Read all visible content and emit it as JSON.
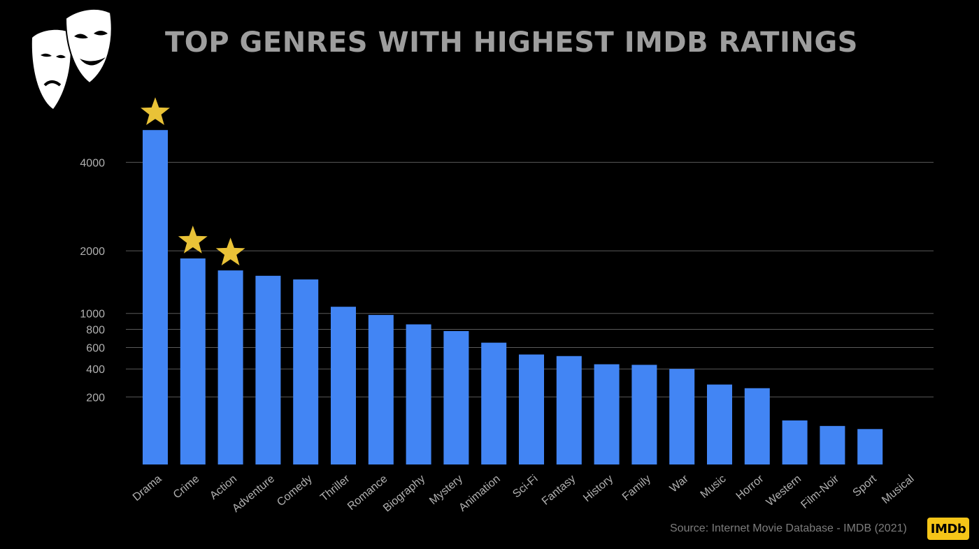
{
  "title": "TOP GENRES WITH HIGHEST IMDB RATINGS",
  "source": "Source: Internet Movie Database - IMDB (2021)",
  "logo_text": "IMDb",
  "icons": {
    "logo": "theatre-masks-icon",
    "highlight": "star-icon"
  },
  "colors": {
    "bar": "#4285f4",
    "star": "#e9c237",
    "title": "#9e9e9e",
    "grid": "#5a5a5a",
    "axis_text": "#b0b0b0",
    "logo_bg": "#f5c518"
  },
  "chart_data": {
    "type": "bar",
    "title": "TOP GENRES WITH HIGHEST IMDB RATINGS",
    "xlabel": "",
    "ylabel": "",
    "yscale": "sqrt",
    "ylim": [
      0,
      5000
    ],
    "yticks": [
      200,
      400,
      600,
      800,
      1000,
      2000,
      4000
    ],
    "grid": true,
    "categories": [
      "Drama",
      "Crime",
      "Action",
      "Adventure",
      "Comedy",
      "Thriller",
      "Romance",
      "Biography",
      "Mystery",
      "Animation",
      "Sci-Fi",
      "Fantasy",
      "History",
      "Family",
      "War",
      "Music",
      "Horror",
      "Western",
      "Film-Noir",
      "Sport",
      "Musical"
    ],
    "values": [
      4900,
      1860,
      1650,
      1560,
      1500,
      1090,
      980,
      860,
      780,
      650,
      530,
      515,
      440,
      435,
      400,
      280,
      255,
      85,
      65,
      55,
      0
    ],
    "highlighted": [
      "Drama",
      "Crime",
      "Action"
    ]
  }
}
